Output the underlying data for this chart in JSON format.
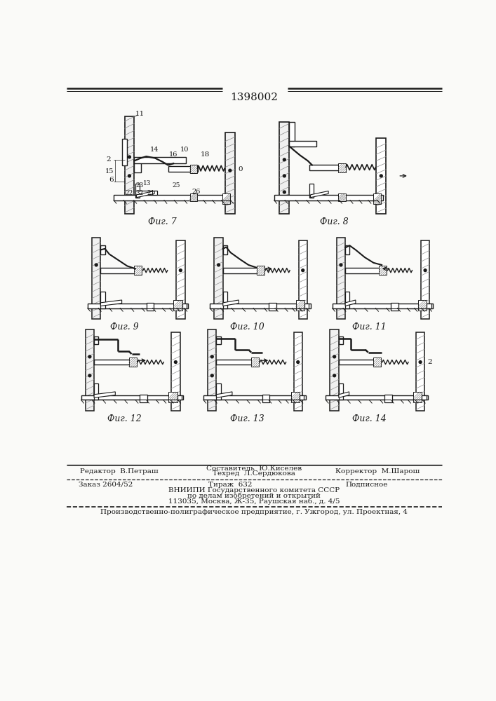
{
  "patent_number": "1398002",
  "bg_color": "#fafaf8",
  "text_color": "#111111",
  "footer": {
    "editor": "Редактор  В.Петраш",
    "composer": "Составитель  Ю.Киселев",
    "techred": "Техред  Л.Сердюкова",
    "corrector": "Корректор  М.Шарош",
    "order": "Заказ 2604/52",
    "tirazh": "Тираж  632",
    "podpisnoe": "Подписное",
    "vniip1": "ВНИИПИ Государственного комитета СССР",
    "vniip2": "по делам изобретений и открытий",
    "vniip3": "113035, Москва, Ж-35, Раушская наб., д. 4/5",
    "printer": "Производственно-полиграфическое предприятие, г. Ужгород, ул. Проектная, 4"
  }
}
